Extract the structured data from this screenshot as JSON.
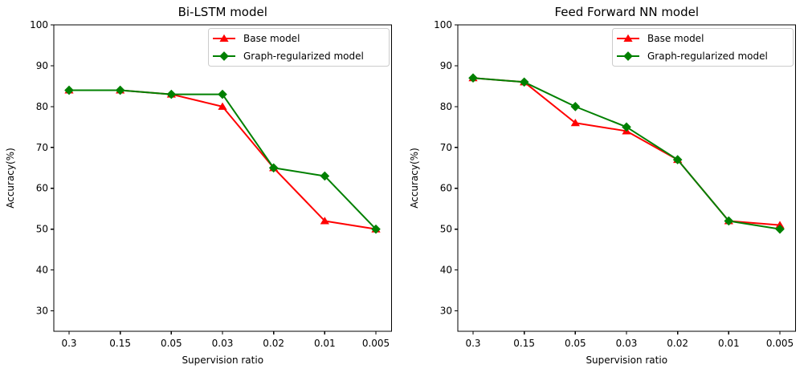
{
  "figure": {
    "background": "#ffffff",
    "axis_color": "#000000",
    "legend_border_color": "#cccccc"
  },
  "chart_data": [
    {
      "type": "line",
      "title": "Bi-LSTM model",
      "xlabel": "Supervision ratio",
      "ylabel": "Accuracy(%)",
      "categories": [
        "0.3",
        "0.15",
        "0.05",
        "0.03",
        "0.02",
        "0.01",
        "0.005"
      ],
      "yticks": [
        100,
        90,
        80,
        70,
        60,
        50,
        40,
        30
      ],
      "ylim": [
        25,
        100
      ],
      "grid": false,
      "legend_position": "upper right",
      "series": [
        {
          "name": "Base model",
          "color": "#ff0000",
          "marker": "triangle",
          "values": [
            84,
            84,
            83,
            80,
            65,
            52,
            50
          ]
        },
        {
          "name": "Graph-regularized model",
          "color": "#008000",
          "marker": "diamond",
          "values": [
            84,
            84,
            83,
            83,
            65,
            63,
            50
          ]
        }
      ]
    },
    {
      "type": "line",
      "title": "Feed Forward NN model",
      "xlabel": "Supervision ratio",
      "ylabel": "Accuracy(%)",
      "categories": [
        "0.3",
        "0.15",
        "0.05",
        "0.03",
        "0.02",
        "0.01",
        "0.005"
      ],
      "yticks": [
        100,
        90,
        80,
        70,
        60,
        50,
        40,
        30
      ],
      "ylim": [
        25,
        100
      ],
      "grid": false,
      "legend_position": "upper right",
      "series": [
        {
          "name": "Base model",
          "color": "#ff0000",
          "marker": "triangle",
          "values": [
            87,
            86,
            76,
            74,
            67,
            52,
            51
          ]
        },
        {
          "name": "Graph-regularized model",
          "color": "#008000",
          "marker": "diamond",
          "values": [
            87,
            86,
            80,
            75,
            67,
            52,
            50
          ]
        }
      ]
    }
  ]
}
